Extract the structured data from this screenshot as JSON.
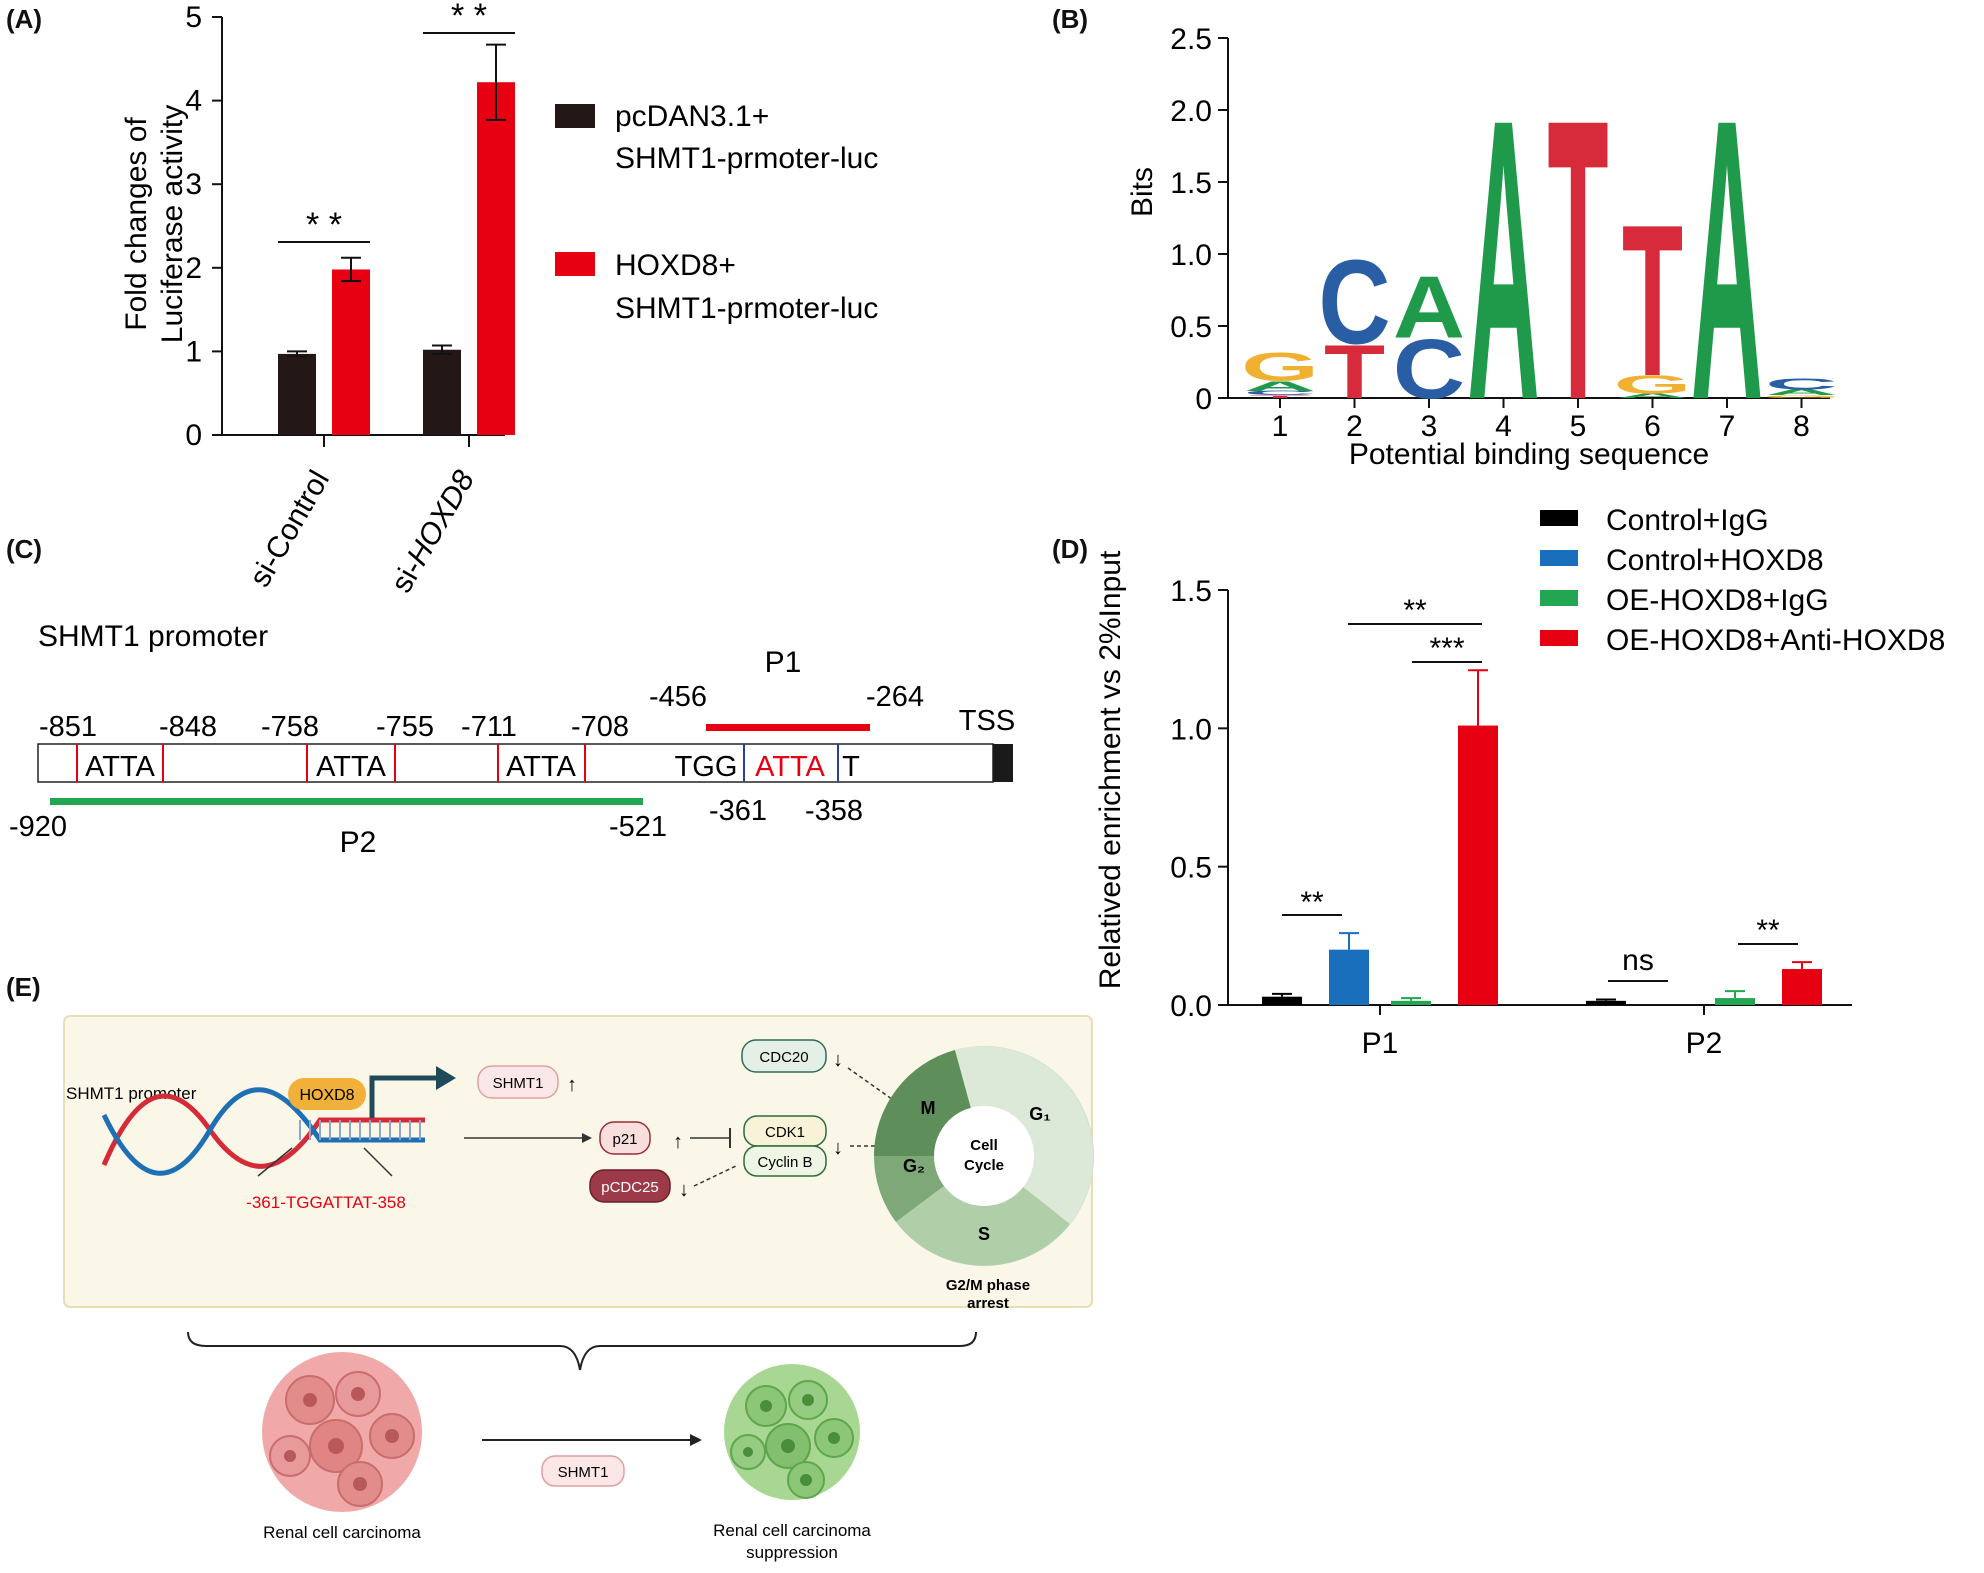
{
  "panel_labels": {
    "a": "(A)",
    "b": "(B)",
    "c": "(C)",
    "d": "(D)",
    "e": "(E)"
  },
  "chart_data": [
    {
      "panel": "A",
      "type": "bar",
      "ylabel_line1": "Fold changes of",
      "ylabel_line2": "Luciferase activity",
      "ylim": [
        0,
        5
      ],
      "yticks": [
        "0",
        "1",
        "2",
        "3",
        "4",
        "5"
      ],
      "categories": [
        "si-Control",
        "si-HOXD8"
      ],
      "category_parts": [
        {
          "plain": "si-Control",
          "italic": ""
        },
        {
          "plain": "si-",
          "italic": "HOXD8"
        }
      ],
      "series": [
        {
          "name": "pcDAN3.1+\nSHMT1-prmoter-luc",
          "color": "#231815",
          "values": [
            0.97,
            1.02
          ],
          "errors": [
            0.03,
            0.05
          ]
        },
        {
          "name": "HOXD8+\nSHMT1-prmoter-luc",
          "color": "#e60012",
          "values": [
            1.98,
            4.22
          ],
          "errors": [
            0.14,
            0.45
          ]
        }
      ],
      "significance": [
        "* *",
        "* *"
      ]
    },
    {
      "panel": "B",
      "type": "sequence-logo",
      "ylabel": "Bits",
      "xlabel": "Potential binding sequence",
      "ylim": [
        0,
        2.5
      ],
      "yticks": [
        "0",
        "0.5",
        "1.0",
        "1.5",
        "2.0",
        "2.5"
      ],
      "positions": [
        "1",
        "2",
        "3",
        "4",
        "5",
        "6",
        "7",
        "8"
      ],
      "stacks": [
        [
          {
            "letter": "T",
            "height": 0.02
          },
          {
            "letter": "C",
            "height": 0.03
          },
          {
            "letter": "A",
            "height": 0.07
          },
          {
            "letter": "G",
            "height": 0.2
          }
        ],
        [
          {
            "letter": "T",
            "height": 0.38
          },
          {
            "letter": "C",
            "height": 0.6
          }
        ],
        [
          {
            "letter": "C",
            "height": 0.42
          },
          {
            "letter": "A",
            "height": 0.44
          }
        ],
        [
          {
            "letter": "A",
            "height": 2.0
          }
        ],
        [
          {
            "letter": "T",
            "height": 2.0
          }
        ],
        [
          {
            "letter": "A",
            "height": 0.03
          },
          {
            "letter": "G",
            "height": 0.13
          },
          {
            "letter": "T",
            "height": 1.08
          }
        ],
        [
          {
            "letter": "A",
            "height": 2.0
          }
        ],
        [
          {
            "letter": "G",
            "height": 0.02
          },
          {
            "letter": "A",
            "height": 0.04
          },
          {
            "letter": "C",
            "height": 0.08
          }
        ]
      ],
      "colors": {
        "A": "#1f9a4a",
        "C": "#2a5ea4",
        "G": "#f0b032",
        "T": "#d72b3c"
      }
    },
    {
      "panel": "D",
      "type": "bar",
      "ylabel": "Relatived enrichment vs 2%Input",
      "ylim": [
        0,
        1.5
      ],
      "yticks": [
        "0.0",
        "0.5",
        "1.0",
        "1.5"
      ],
      "categories": [
        "P1",
        "P2"
      ],
      "series": [
        {
          "name": "Control+IgG",
          "color": "#000000",
          "values": [
            0.03,
            0.015
          ],
          "errors": [
            0.01,
            0.005
          ]
        },
        {
          "name": "Control+HOXD8",
          "color": "#1a6fbd",
          "values": [
            0.2,
            0.0
          ],
          "errors": [
            0.06,
            0.0
          ]
        },
        {
          "name": "OE-HOXD8+IgG",
          "color": "#22a652",
          "values": [
            0.015,
            0.025
          ],
          "errors": [
            0.01,
            0.025
          ]
        },
        {
          "name": "OE-HOXD8+Anti-HOXD8",
          "color": "#e60012",
          "values": [
            1.01,
            0.13
          ],
          "errors": [
            0.2,
            0.025
          ]
        }
      ],
      "significance": {
        "p1_a": "**",
        "p1_b": "**",
        "p1_c": "***",
        "p2_a": "ns",
        "p2_b": "**"
      }
    }
  ],
  "promoter": {
    "title": "SHMT1 promoter",
    "sites": [
      {
        "left": "-851",
        "right": "-848",
        "seq": "ATTA"
      },
      {
        "left": "-758",
        "right": "-755",
        "seq": "ATTA"
      },
      {
        "left": "-711",
        "right": "-708",
        "seq": "ATTA"
      }
    ],
    "main_site": {
      "prefix": "TGG",
      "seq": "ATTA",
      "suffix": "T",
      "left": "-361",
      "right": "-358"
    },
    "tss": "TSS",
    "p1": {
      "label": "P1",
      "start": "-456",
      "end": "-264"
    },
    "p2": {
      "label": "P2",
      "start": "-920",
      "end": "-521"
    }
  },
  "model": {
    "promoter_label": "SHMT1 promoter",
    "tf": "HOXD8",
    "motif": "-361-TGGATTAT-358",
    "shmt1": "SHMT1",
    "p21": "p21",
    "pcdc25": "pCDC25",
    "cdc20": "CDC20",
    "cdk1": "CDK1",
    "cyclinb": "Cyclin B",
    "cycle_center_1": "Cell",
    "cycle_center_2": "Cycle",
    "phase_m": "M",
    "phase_g1": "G₁",
    "phase_g2": "G₂",
    "phase_s": "S",
    "arrest_1": "G2/M phase",
    "arrest_2": "arrest",
    "rcc": "Renal cell carcinoma",
    "shmt1_arrow": "SHMT1",
    "rcc_supp_1": "Renal cell carcinoma",
    "rcc_supp_2": "suppression"
  }
}
